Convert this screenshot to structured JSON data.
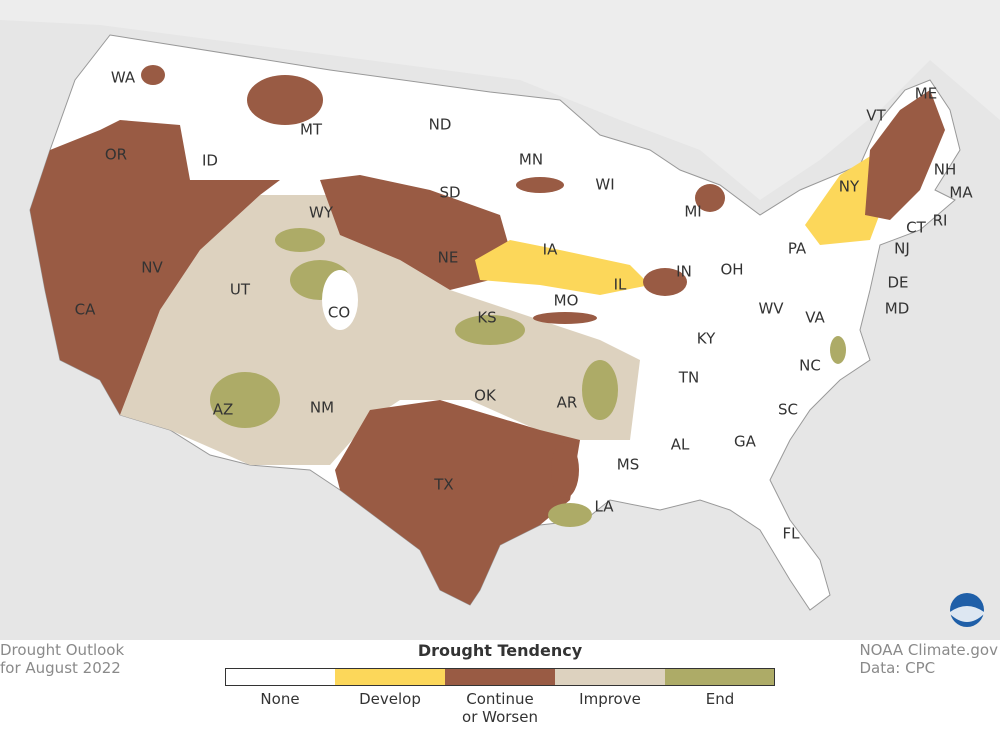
{
  "map": {
    "state_labels": [
      "WA",
      "OR",
      "CA",
      "NV",
      "ID",
      "MT",
      "WY",
      "UT",
      "AZ",
      "NM",
      "CO",
      "ND",
      "SD",
      "NE",
      "KS",
      "OK",
      "TX",
      "MN",
      "IA",
      "MO",
      "AR",
      "LA",
      "WI",
      "IL",
      "MI",
      "IN",
      "OH",
      "KY",
      "TN",
      "MS",
      "AL",
      "GA",
      "FL",
      "SC",
      "NC",
      "VA",
      "WV",
      "PA",
      "NY",
      "VT",
      "ME",
      "NH",
      "MA",
      "RI",
      "CT",
      "NJ",
      "DE",
      "MD"
    ]
  },
  "legend": {
    "title": "Drought Tendency",
    "items": [
      {
        "label": "None",
        "color": "#ffffff"
      },
      {
        "label": "Develop",
        "color": "#fcd75a"
      },
      {
        "label": "Continue or Worsen",
        "color": "#995b44"
      },
      {
        "label": "Improve",
        "color": "#ddd2bf"
      },
      {
        "label": "End",
        "color": "#adab67"
      }
    ]
  },
  "caption": {
    "left": [
      "Drought Outlook",
      "for August 2022"
    ],
    "right": [
      "NOAA Climate.gov",
      "Data: CPC"
    ]
  }
}
